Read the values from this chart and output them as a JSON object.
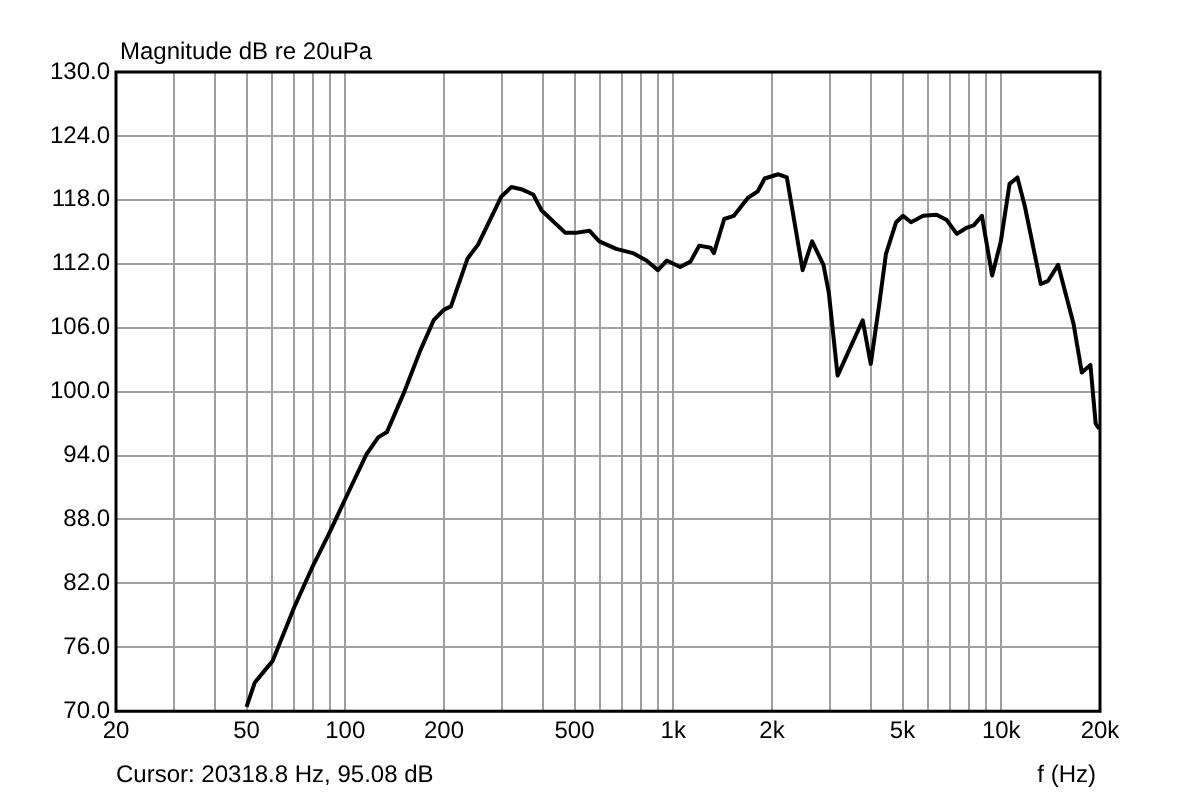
{
  "chart_data": {
    "type": "line",
    "ylabel": "Magnitude dB re 20uPa",
    "xlabel": "f (Hz)",
    "annotations": [
      "Cursor: 20318.8 Hz, 95.08 dB"
    ],
    "log": "x",
    "grid": true,
    "legend": false,
    "marker": "none",
    "line_style": "solid",
    "xlim": [
      20,
      20000
    ],
    "xticks": [
      20,
      {
        "value": 30,
        "label": null
      },
      {
        "value": 40,
        "label": null
      },
      50,
      {
        "value": 60,
        "label": null
      },
      {
        "value": 70,
        "label": null
      },
      {
        "value": 80,
        "label": null
      },
      {
        "value": 90,
        "label": null
      },
      100,
      200,
      {
        "value": 300,
        "label": null
      },
      {
        "value": 400,
        "label": null
      },
      500,
      {
        "value": 600,
        "label": null
      },
      {
        "value": 700,
        "label": null
      },
      {
        "value": 800,
        "label": null
      },
      {
        "value": 900,
        "label": null
      },
      {
        "value": 1000,
        "label": "1k"
      },
      {
        "value": 2000,
        "label": "2k"
      },
      {
        "value": 3000,
        "label": null
      },
      {
        "value": 4000,
        "label": null
      },
      {
        "value": 5000,
        "label": "5k"
      },
      {
        "value": 6000,
        "label": null
      },
      {
        "value": 7000,
        "label": null
      },
      {
        "value": 8000,
        "label": null
      },
      {
        "value": 9000,
        "label": null
      },
      {
        "value": 10000,
        "label": "10k"
      },
      {
        "value": 20000,
        "label": "20k"
      }
    ],
    "ylim": [
      70,
      130
    ],
    "yticks": [
      {
        "value": 70,
        "label": "70.0"
      },
      {
        "value": 76,
        "label": "76.0"
      },
      {
        "value": 82,
        "label": "82.0"
      },
      {
        "value": 88,
        "label": "88.0"
      },
      {
        "value": 94,
        "label": "94.0"
      },
      {
        "value": 100,
        "label": "100.0"
      },
      {
        "value": 106,
        "label": "106.0"
      },
      {
        "value": 112,
        "label": "112.0"
      },
      {
        "value": 118,
        "label": "118.0"
      },
      {
        "value": 124,
        "label": "124.0"
      },
      {
        "value": 130,
        "label": "130.0"
      }
    ],
    "x": [
      50,
      53,
      60,
      70,
      79,
      89,
      101,
      116,
      126,
      134,
      151,
      169,
      186,
      200,
      210,
      236,
      254,
      299,
      321,
      344,
      374,
      397,
      469,
      504,
      555,
      595,
      670,
      753,
      828,
      898,
      955,
      1050,
      1128,
      1200,
      1300,
      1330,
      1430,
      1530,
      1690,
      1810,
      1900,
      2090,
      2220,
      2480,
      2650,
      2870,
      2980,
      3170,
      3780,
      4000,
      4250,
      4450,
      4780,
      5020,
      5310,
      5780,
      6350,
      6820,
      7320,
      7860,
      8240,
      8730,
      9380,
      9970,
      10600,
      11200,
      11800,
      13200,
      13900,
      14900,
      16600,
      17600,
      18700,
      19400,
      19900
    ],
    "series": [
      {
        "color": "#000000",
        "values": [
          70.4,
          72.7,
          74.7,
          79.8,
          83.4,
          86.6,
          90.2,
          94.1,
          95.7,
          96.2,
          99.9,
          103.8,
          106.7,
          107.7,
          108.0,
          112.5,
          113.8,
          118.3,
          119.2,
          119.0,
          118.5,
          117.0,
          114.9,
          114.9,
          115.1,
          114.1,
          113.4,
          113.0,
          112.3,
          111.4,
          112.3,
          111.7,
          112.2,
          113.7,
          113.5,
          113.0,
          116.2,
          116.5,
          118.2,
          118.8,
          120.0,
          120.4,
          120.1,
          111.4,
          114.1,
          111.9,
          109.3,
          101.5,
          106.7,
          102.6,
          108.3,
          112.9,
          115.9,
          116.5,
          115.9,
          116.5,
          116.6,
          116.1,
          114.8,
          115.4,
          115.6,
          116.5,
          110.9,
          114.1,
          119.5,
          120.1,
          117.4,
          110.1,
          110.4,
          111.9,
          106.4,
          101.8,
          102.5,
          97.0,
          96.5
        ]
      }
    ]
  }
}
